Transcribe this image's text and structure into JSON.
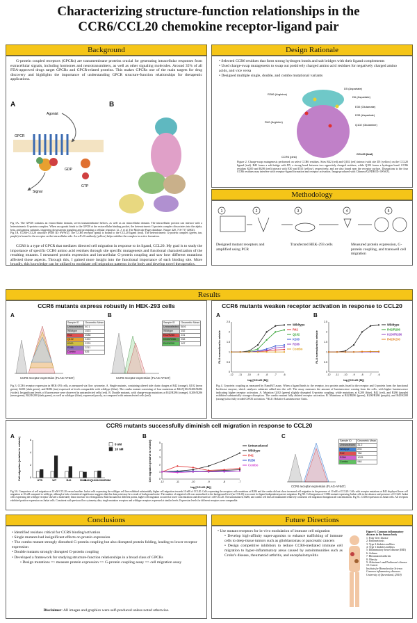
{
  "title_line1": "Characterizing structure-function relationships in the",
  "title_line2": "CCR6/CCL20 chemokine receptor-ligand pair",
  "background": {
    "header": "Background",
    "para1": "G-protein coupled receptors (GPCRs) are transmembrane proteins crucial for generating intracellular responses from extracellular signals, including hormones and neurotransmitters, as well as other signaling molecules. Around 35% of all FDA-approved drugs target GPCRs and GPCR-related proteins. This makes GPCRs one of the main targets for drug discovery and highlights the importance of understanding GPCR structure-function relationships for therapeutic applications.",
    "fig_label_a": "A",
    "fig_label_b": "B",
    "fig_labels": {
      "agonist": "Agonist",
      "gpcr": "GPCR",
      "signal": "Signal",
      "gdp": "GDP",
      "gtp": "GTP"
    },
    "caption1": "Fig 1A. The GPCR contains an extracellular domain, seven transmembrane helices, as well as an intracellular domain. The intracellular portion can interact with a heterotrimeric G-protein complex. When an agonist binds to the GPCR at the extracellular binding pocket, the heterotrimeric G-protein complex dissociates into the alpha, beta, and gamma subunits, triggering downstream signaling and prompting a cellular response. Li, J. et al. The Molecule Pages database. Nature 420, 716-717 (2002).",
    "caption2": "Fig 1B. CCR6-CCL20 structure (PDB ID: 6WWZ). The CCR6 receptor (pink) is bound to the CCL20 ligand (teal). The heterotrimeric G-protein complex (green, tan, purple) is bound to the receptor on the intracellular side. An scFv16 antibody (yellow) helps stabilize the complex in active formation.",
    "para2": "CCR6 is a type of GPCR that mediates directed cell migration in response to its ligand, CCL20. My goal is to study the importance of specific CCR6 amino acid residues through site specific mutagenesis and functional characterization of the resulting mutants. I measured protein expression and intracellular G-protein coupling and saw how different mutations affected those aspects. Through this, I gained more insight into the functional importance of each binding site. More broadly, this knowledge can be utilized to modulate cell migration patterns in the body and develop novel therapeutics."
  },
  "design": {
    "header": "Design Rationale",
    "bullets": [
      "Selected CCR6 residues that form strong hydrogen bonds and salt bridges with their ligand complements",
      "Used charge-swap mutagenesis to swap out positively charged amino acid residues for negatively charged amino acids, and vice versa",
      "Designed multiple single, double, and combo mutational variants"
    ],
    "residue_labels": [
      "D5 (Aspartate)",
      "R286 (Arginine)",
      "D6 (Aspartate)",
      "E30 (Glutamate)",
      "D33 (Aspartate)",
      "R42 (Arginine)",
      "Q102 (Glutamine)",
      "CCR6 (pink)",
      "CCL20 (teal)"
    ],
    "caption": "Figure 2. Charge-swap mutagenesis performed on select CCR6 residues. Sites R42 (red) and Q102 (red) interact with site D5 (yellow) on the CCL20 ligand (teal). R42 forms a salt-bridge with D5, a strong bond between two oppositely charged residues, while Q102 forms a hydrogen bond. CCR6 residues K200 and R286 (red) interact with E30 and D33 (yellow), respectively, and are also found near the receptor surface. Disruptions to the four CCR6 residues may interfere with receptor-ligand formation and receptor activation. Image produced with ChimeraX (PDB ID: 6WWZ)."
  },
  "methodology": {
    "header": "Methodology",
    "steps": [
      {
        "num": "1",
        "label": "Designed mutant receptors and amplified using PCR"
      },
      {
        "num": "2",
        "label": ""
      },
      {
        "num": "3",
        "label": "Transfected HEK-293 cells"
      },
      {
        "num": "4",
        "label": ""
      },
      {
        "num": "5",
        "label": "Measured protein expression, G-protein coupling, and transwell cell migration"
      }
    ]
  },
  "results": {
    "header": "Results",
    "expr": {
      "title": "CCR6 mutants express robustly in HEK-293 cells",
      "label_a": "A",
      "label_b": "B",
      "xaxis": "CCR6 receptor expression (FLAG-AF647)",
      "table_a_head": [
        "Sample ID",
        "Geometric Mean"
      ],
      "table_a": [
        [
          "Untransfected",
          "40.1",
          "#bbbbbb"
        ],
        [
          "Wildtype",
          "1523",
          "#dddddd"
        ],
        [
          "R42",
          "2088",
          "#e05050"
        ],
        [
          "Q102",
          "2492",
          "#e8a030"
        ],
        [
          "K200",
          "2370",
          "#d0c040"
        ],
        [
          "R286",
          "2211",
          "#9070c0"
        ],
        [
          "Combo",
          "626",
          "#d060d0"
        ]
      ],
      "table_b_head": [
        "Sample ID",
        "Geometric Mean"
      ],
      "table_b": [
        [
          "Untransfected",
          "68.6",
          "#bbbbbb"
        ],
        [
          "Wildtype",
          "152",
          "#dddddd"
        ],
        [
          "R42/R286",
          "241",
          "#e05050"
        ],
        [
          "K200/R286",
          "258",
          "#5aa050"
        ],
        [
          "R42/K200",
          "187",
          "#60c060"
        ]
      ],
      "caption": "Fig 3. CCR6 receptor expression in HEK-293 cells, as measured via flow cytometry. A. Single mutants, containing altered side chain charges at R42 (orange), Q102 (neon green), K200 (dark green), and R286 (tan) expressed at levels comparable with wildtype (blue). The combo mutant consisting of four mutations at R42/Q102/K200/R286 (violet). Insignificant levels of fluorescence were observed in untransfected cells (red). B. Double mutants, with charge-swap mutations at R42/R286 (orange), K200/R286 (neon green), R42/K200 (dark green), as well as wildtype (blue), expressed poorly, as compared with untransfected cells (red)."
    },
    "act": {
      "title": "CCR6 mutants weaken receptor activation in response to CCL20",
      "label_a": "A",
      "label_b": "B",
      "ylabel": "RLU normalized to vehicle",
      "xlabel": "log [CCL20 (M)]",
      "caption": "Fig 4. G-protein coupling as measured by NanoBiT assay. When a ligand binds to the receptor, two protein units fused to the receptor and G-protein form the functional luciferase enzyme, which catalyzes substrate added into the cell. The assay measures the amount of luminescence coming from the cells, with higher luminescence indicating higher receptor activation. A. Mutation Q102 (green) slightly disrupted G-protein coupling, while mutations at K200 (blue), R42 (red), and R286 (purple) exhibited substantially stronger disruption. The combo mutant fully ablated receptor activation. B. Mutations at R42/R286 (green), K200/R286 (purple), and R42/K200 (orange) also fully eroded GPCR activation. *RLU: Relative Luminescence Units."
    },
    "mig": {
      "title": "CCR6 mutants successfully diminish cell migration in response to CCL20",
      "label_a": "A",
      "label_b": "B",
      "label_c": "C",
      "ylabel": "Cell migration (relative to vehicle)",
      "xlabel": "log [CCL20 (M)]",
      "legend_a": [
        "0 nM",
        "10 nM"
      ],
      "table_head": [
        "Sample ID",
        "Geometric Mean"
      ],
      "table": [
        [
          "Untransfected",
          "31.2",
          "#bbbbbb"
        ],
        [
          "Wildtype",
          "878",
          "#4080d0"
        ],
        [
          "R42",
          "788",
          "#e05050"
        ],
        [
          "R286",
          "1025",
          "#d060d0"
        ],
        [
          "Combo",
          "948",
          "#60c060"
        ]
      ],
      "xaxis_c": "CCR6 receptor expression (FLAG-AF647)",
      "caption": "Fig 5A. Comparison of cell migration at 10 nM CCL20 versus baseline. Jurkat cells expressing the wildtype cell line exhibited substantially higher cell migration towards 10 nM of CCL20. Cells expressing the receptors with mutations at R286 and the combo did not show increased cell migration in the presence of 10 nM of CCL20. Cells with receptor mutations at R42 displayed lower cell migration at 10 nM compared to wildtype, although a lack of statistical significance suggests that this data point may be a result of background noise. The number of migrated cells was normalized to the background level (no CCL20) to account for ligand-independent passive migration. Fig 5B. Cell migration of CCR6 mutant-expressing Jurkat cells in the absence and presence of CCL20. Jurkat cells expressing the wildtype receptor showed a moderately linear increase in cell migration. R42 fluctuated at different points, higher cell migration occurred at lower concentrations and decreased at 1 nM CCL20. The untransduced, R286, and combo cell lines all maintained relatively consistent cell migration throughout all concentrations. Fig 5C. CCR6 expression on Jurkat cells. All receptors exhibited positive expression on Jurkat cells. Consistent with previous flow cytometry data, single mutation receptors and wildtype receptors expressed at similar levels. Expression levels for different receptors were comparable."
    }
  },
  "conclusions": {
    "header": "Conclusions",
    "bullets": [
      "Identified residues critical for CCR6 binding/activation",
      "Single mutants had insignificant effects on protein expression",
      "The combo mutant strongly disturbed G-protein coupling but also disrupted protein folding, leading to lower receptor expression",
      "Double mutants strongly disrupted G-protein coupling",
      "Developed a framework for studying structure-function relationships in a broad class of GPCRs"
    ],
    "sub": "Design mutations => measure protein expression => G-protein coupling assay => cell migration assay",
    "disclaimer_bold": "Disclaimer",
    "disclaimer": ": All images and graphics were self-produced unless noted otherwise."
  },
  "future": {
    "header": "Future Directions",
    "bullet": "Use mutant receptors for in-vivo modulation of immune cell migration",
    "subs": [
      "Develop high-affinity super-agonists to enhance trafficking of immune cells to deep-tissue tumors such as glioblastomas or pancreatic cancers",
      "Design competitive inhibitors to reduce CCR6-mediated immune cell migration to hyper-inflammatory areas caused by autoimmunities such as Crohn's disease, rheumatoid arthritis, and encephalomyelitis"
    ],
    "fig_title": "Figure 6. Common inflammatory diseases in the human body",
    "diseases": [
      "1: Fatty liver disease",
      "2: Endometriosis",
      "3: Type 2 diabetes mellitus",
      "4: Type 1 diabetes mellitus",
      "5: Inflammatory bowel disease (IBD)",
      "6: Asthma",
      "7: Rheumatoid arthritis",
      "8: Obesity",
      "9: Alzheimer's and Parkinson's disease",
      "10: Cancer"
    ],
    "source": "Institute for Biomolecular Science. Common inflammatory diseases. University of Queensland, (2018)"
  },
  "chart_data": [
    {
      "type": "line",
      "title": "",
      "xlabel": "log [CCL20 (M)]",
      "ylabel": "RLU normalized to vehicle",
      "x": [
        -12,
        -11,
        -10,
        -9,
        -8,
        -7,
        -6
      ],
      "xlim": [
        -12,
        -6
      ],
      "ylim": [
        0,
        2.5
      ],
      "series": [
        {
          "name": "Wildtype",
          "color": "#222222",
          "values": [
            1.0,
            1.0,
            1.05,
            1.35,
            2.0,
            2.3,
            2.35
          ]
        },
        {
          "name": "R42",
          "color": "#e03030",
          "values": [
            1.0,
            1.0,
            1.0,
            1.02,
            1.05,
            1.1,
            1.12
          ]
        },
        {
          "name": "Q102",
          "color": "#30a030",
          "values": [
            1.0,
            1.0,
            1.02,
            1.15,
            1.6,
            2.0,
            2.1
          ]
        },
        {
          "name": "K200",
          "color": "#3050d0",
          "values": [
            1.0,
            1.0,
            1.0,
            1.05,
            1.15,
            1.3,
            1.35
          ]
        },
        {
          "name": "R286",
          "color": "#9040c0",
          "values": [
            1.0,
            1.0,
            1.0,
            1.02,
            1.08,
            1.2,
            1.25
          ]
        },
        {
          "name": "Combo",
          "color": "#e0a020",
          "values": [
            1.0,
            1.0,
            1.0,
            1.0,
            1.0,
            1.0,
            1.0
          ]
        }
      ]
    },
    {
      "type": "line",
      "title": "",
      "xlabel": "log [CCL20 (M)]",
      "ylabel": "RLU normalized to vehicle",
      "x": [
        -12,
        -11,
        -10,
        -9,
        -8,
        -7,
        -6
      ],
      "xlim": [
        -12,
        -6
      ],
      "ylim": [
        0,
        2.5
      ],
      "series": [
        {
          "name": "Wildtype",
          "color": "#222222",
          "values": [
            1.0,
            1.0,
            1.05,
            1.35,
            2.0,
            2.3,
            2.35
          ]
        },
        {
          "name": "R42/R286",
          "color": "#30a030",
          "values": [
            1.0,
            1.0,
            1.0,
            1.0,
            1.0,
            1.02,
            1.02
          ]
        },
        {
          "name": "K200/R286",
          "color": "#9040c0",
          "values": [
            1.0,
            1.0,
            1.0,
            1.0,
            1.0,
            1.0,
            1.0
          ]
        },
        {
          "name": "R42/K200",
          "color": "#e08020",
          "values": [
            1.0,
            1.0,
            1.0,
            1.0,
            1.02,
            1.02,
            1.02
          ]
        }
      ]
    },
    {
      "type": "bar",
      "title": "",
      "xlabel": "",
      "ylabel": "Cell migration (relative to vehicle)",
      "categories": [
        "UTD",
        "WT",
        "R42",
        "R286",
        "R42/Q102/K200/R286"
      ],
      "ylim": [
        0,
        6
      ],
      "series": [
        {
          "name": "0 nM",
          "color": "#ffffff",
          "values": [
            1,
            1,
            1,
            1,
            1
          ]
        },
        {
          "name": "10 nM",
          "color": "#222222",
          "values": [
            1.3,
            3.5,
            1.8,
            0.9,
            1.1
          ]
        }
      ]
    },
    {
      "type": "line",
      "title": "",
      "xlabel": "log [CCL20 (M)]",
      "ylabel": "Cell migration (relative to vehicle)",
      "x": [
        -12,
        -11,
        -10,
        -9,
        -8,
        -7
      ],
      "xlim": [
        -12,
        -7
      ],
      "ylim": [
        0,
        5
      ],
      "series": [
        {
          "name": "Untransduced",
          "color": "#222222",
          "values": [
            1.0,
            1.1,
            1.0,
            1.1,
            1.2,
            1.3
          ]
        },
        {
          "name": "Wildtype",
          "color": "#222222",
          "values": [
            1.0,
            1.1,
            1.3,
            1.8,
            2.6,
            3.6
          ]
        },
        {
          "name": "R42",
          "color": "#e03030",
          "values": [
            1.0,
            1.8,
            1.6,
            1.2,
            1.3,
            1.5
          ]
        },
        {
          "name": "R286",
          "color": "#3050d0",
          "values": [
            1.0,
            1.0,
            1.1,
            1.0,
            1.1,
            1.1
          ]
        },
        {
          "name": "Combo",
          "color": "#d040d0",
          "values": [
            1.0,
            0.9,
            1.0,
            1.0,
            1.0,
            1.1
          ]
        }
      ]
    }
  ]
}
